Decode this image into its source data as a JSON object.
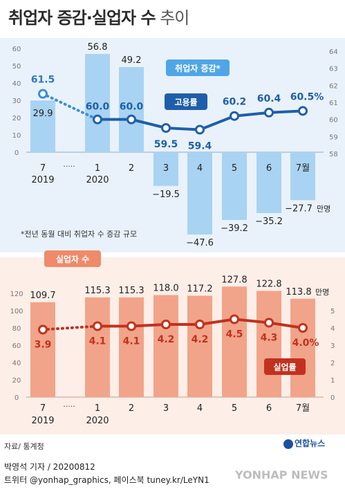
{
  "header": {
    "title": "취업자 증감·실업자 수",
    "title_suffix": " 추이"
  },
  "colors": {
    "top_bar": "#a9d3f2",
    "line_blue": "#1f5fa9",
    "dot_blue": "#3a8ed8",
    "bottom_bar": "#f1a489",
    "line_red": "#c2311f",
    "panel_top": "#e9f2fb",
    "panel_bottom": "#fdeee8"
  },
  "chart_data": [
    {
      "type": "bar",
      "title": "취업자 증감",
      "categories": [
        "7",
        "1",
        "2",
        "3",
        "4",
        "5",
        "6",
        "7월"
      ],
      "year_labels": [
        "2019",
        "",
        "2020",
        "",
        "",
        "",
        "",
        ""
      ],
      "ellipsis": "·····",
      "unit": "만명",
      "ylim": [
        -50,
        60
      ],
      "left_ticks": [
        "60",
        "50",
        "40",
        "30",
        "20",
        "10",
        "0"
      ],
      "series": [
        {
          "name": "취업자 증감",
          "values": [
            29.9,
            56.8,
            49.2,
            -19.5,
            -47.6,
            -39.2,
            -35.2,
            -27.7
          ],
          "labels": [
            "29.9",
            "56.8",
            "49.2",
            "−19.5",
            "−47.6",
            "−39.2",
            "−35.2",
            "−27.7"
          ]
        }
      ],
      "legend_tag": "취업자 증감*",
      "footnote": "*전년 동월 대비 취업자 수 증감 규모"
    },
    {
      "type": "line",
      "title": "고용률",
      "categories": [
        "7",
        "1",
        "2",
        "3",
        "4",
        "5",
        "6",
        "7월"
      ],
      "ylim": [
        58,
        64
      ],
      "right_ticks": [
        "64",
        "63",
        "62",
        "61",
        "60",
        "59",
        "58"
      ],
      "series": [
        {
          "name": "고용률",
          "values": [
            61.5,
            60.0,
            60.0,
            59.5,
            59.4,
            60.2,
            60.4,
            60.5
          ],
          "labels": [
            "61.5",
            "60.0",
            "60.0",
            "59.5",
            "59.4",
            "60.2",
            "60.4",
            "60.5%"
          ]
        }
      ]
    },
    {
      "type": "bar",
      "title": "실업자 수",
      "categories": [
        "7",
        "1",
        "2",
        "3",
        "4",
        "5",
        "6",
        "7월"
      ],
      "year_labels": [
        "2019",
        "",
        "2020",
        "",
        "",
        "",
        "",
        ""
      ],
      "ellipsis": "·····",
      "unit": "만명",
      "ylim": [
        0,
        120
      ],
      "left_ticks": [
        "120",
        "100",
        "80",
        "60",
        "40",
        "20",
        "0"
      ],
      "series": [
        {
          "name": "실업자 수",
          "values": [
            109.7,
            115.3,
            115.3,
            118.0,
            117.2,
            127.8,
            122.8,
            113.8
          ],
          "labels": [
            "109.7",
            "115.3",
            "115.3",
            "118.0",
            "117.2",
            "127.8",
            "122.8",
            "113.8"
          ]
        }
      ]
    },
    {
      "type": "line",
      "title": "실업률",
      "categories": [
        "7",
        "1",
        "2",
        "3",
        "4",
        "5",
        "6",
        "7월"
      ],
      "ylim": [
        0,
        6
      ],
      "right_ticks": [
        "5",
        "4",
        "3",
        "2",
        "1",
        "0"
      ],
      "series": [
        {
          "name": "실업률",
          "values": [
            3.9,
            4.1,
            4.1,
            4.2,
            4.2,
            4.5,
            4.3,
            4.0
          ],
          "labels": [
            "3.9",
            "4.1",
            "4.1",
            "4.2",
            "4.2",
            "4.5",
            "4.3",
            "4.0%"
          ]
        }
      ]
    }
  ],
  "footer": {
    "source": "자료/ 통계청",
    "credit": "박영석 기자 / 20200812",
    "sns": "트위터 @yonhap_graphics, 페이스북 tuney.kr/LeYN1",
    "logo": "연합뉴스",
    "watermark": "YONHAP NEWS"
  }
}
